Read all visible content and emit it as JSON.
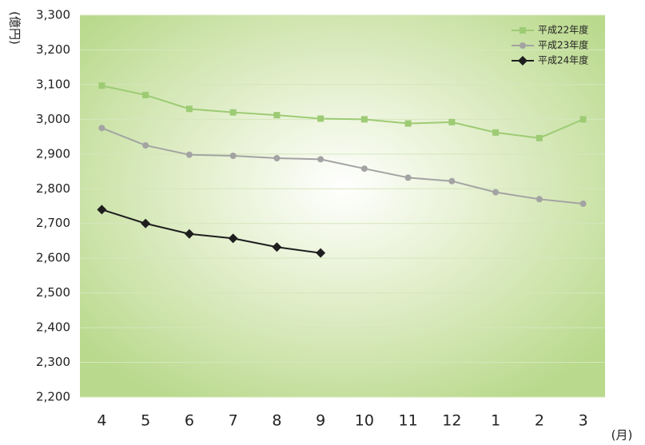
{
  "chart_data": {
    "type": "line",
    "y_label": "(億円)",
    "x_label": "(月)",
    "categories": [
      "4",
      "5",
      "6",
      "7",
      "8",
      "9",
      "10",
      "11",
      "12",
      "1",
      "2",
      "3"
    ],
    "series": [
      {
        "name": "平成22年度",
        "color": "#9dcb74",
        "marker": "square",
        "values": [
          3097,
          3070,
          3030,
          3020,
          3012,
          3002,
          3000,
          2988,
          2992,
          2962,
          2946,
          3000
        ]
      },
      {
        "name": "平成23年度",
        "color": "#a3a3a3",
        "marker": "circle",
        "values": [
          2975,
          2925,
          2898,
          2895,
          2888,
          2885,
          2858,
          2832,
          2822,
          2790,
          2770,
          2757
        ]
      },
      {
        "name": "平成24年度",
        "color": "#1e1e1e",
        "marker": "diamond",
        "values": [
          2740,
          2700,
          2670,
          2657,
          2632,
          2615,
          null,
          null,
          null,
          null,
          null,
          null
        ]
      }
    ],
    "ylim": [
      2200,
      3300
    ],
    "yticks": [
      {
        "value": 2200,
        "label": "2,200"
      },
      {
        "value": 2300,
        "label": "2,300"
      },
      {
        "value": 2400,
        "label": "2,400"
      },
      {
        "value": 2500,
        "label": "2,500"
      },
      {
        "value": 2600,
        "label": "2,600"
      },
      {
        "value": 2700,
        "label": "2,700"
      },
      {
        "value": 2800,
        "label": "2,800"
      },
      {
        "value": 2900,
        "label": "2,900"
      },
      {
        "value": 3000,
        "label": "3,000"
      },
      {
        "value": 3100,
        "label": "3,100"
      },
      {
        "value": 3200,
        "label": "3,200"
      },
      {
        "value": 3300,
        "label": "3,300"
      }
    ],
    "grid": true,
    "legend": "top-right"
  }
}
